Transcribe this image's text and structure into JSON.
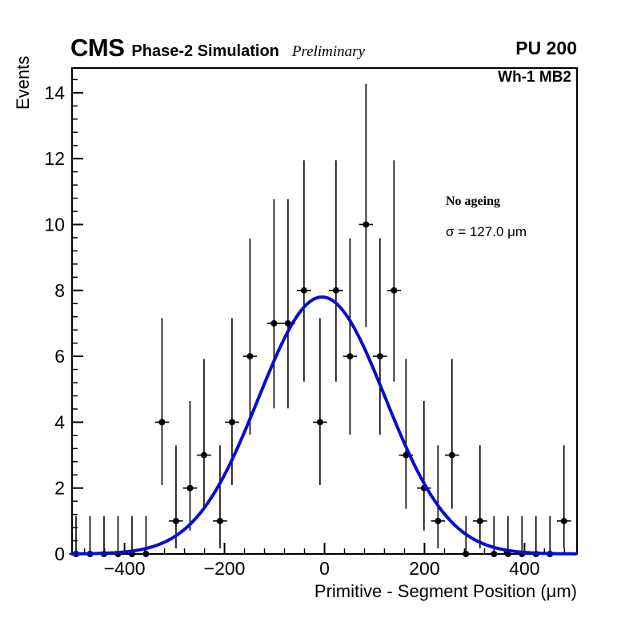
{
  "header": {
    "cms": "CMS",
    "subtitle": "Phase-2 Simulation",
    "preliminary": "Preliminary",
    "pu": "PU 200"
  },
  "plot_label": "Wh-1 MB2",
  "legend": {
    "line1": "No ageing",
    "line2": "σ = 127.0 μm"
  },
  "chart_data": {
    "type": "scatter",
    "title": "",
    "xlabel": "Primitive - Segment Position (μm)",
    "ylabel": "Events",
    "xlim": [
      -505,
      505
    ],
    "ylim": [
      0,
      14.75
    ],
    "x_major_ticks": [
      -400,
      -200,
      0,
      200,
      400
    ],
    "x_minor_step": 40,
    "y_major_ticks": [
      0,
      2,
      4,
      6,
      8,
      10,
      12,
      14
    ],
    "y_minor_step": 0.4,
    "grid": false,
    "legend_position": "upper-right-inside",
    "marker_color": "#000000",
    "fit_color": "#0a0ad0",
    "fit": {
      "type": "gaussian",
      "amplitude": 7.8,
      "mean": -5,
      "sigma": 127.0
    },
    "bin_half_width": 14,
    "points": [
      [
        -497,
        0
      ],
      [
        -469,
        0
      ],
      [
        -441,
        0
      ],
      [
        -413,
        0
      ],
      [
        -385,
        0
      ],
      [
        -357,
        0
      ],
      [
        -325,
        4
      ],
      [
        -297,
        1
      ],
      [
        -269,
        2
      ],
      [
        -241,
        3
      ],
      [
        -209,
        1
      ],
      [
        -185,
        4
      ],
      [
        -149,
        6
      ],
      [
        -101,
        7
      ],
      [
        -73,
        7
      ],
      [
        -41,
        8
      ],
      [
        -9,
        4
      ],
      [
        23,
        8
      ],
      [
        51,
        6
      ],
      [
        83,
        10
      ],
      [
        111,
        6
      ],
      [
        139,
        8
      ],
      [
        163,
        3
      ],
      [
        199,
        2
      ],
      [
        227,
        1
      ],
      [
        255,
        3
      ],
      [
        283,
        0
      ],
      [
        311,
        1
      ],
      [
        339,
        0
      ],
      [
        367,
        0
      ],
      [
        395,
        0
      ],
      [
        423,
        0
      ],
      [
        451,
        0
      ],
      [
        479,
        1
      ]
    ],
    "poisson_errors": {
      "0": [
        0,
        1.15
      ],
      "1": [
        0.17,
        3.3
      ],
      "2": [
        0.71,
        4.64
      ],
      "3": [
        1.37,
        5.92
      ],
      "4": [
        2.09,
        7.16
      ],
      "6": [
        3.62,
        9.58
      ],
      "7": [
        4.42,
        10.77
      ],
      "8": [
        5.23,
        11.95
      ],
      "10": [
        6.89,
        14.27
      ]
    }
  }
}
